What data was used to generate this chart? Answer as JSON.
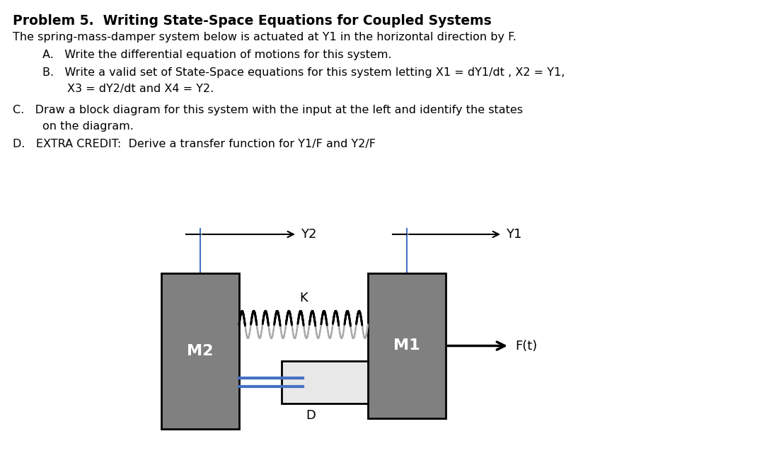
{
  "title": "Problem 5.  Writing State-Space Equations for Coupled Systems",
  "line1": "The spring-mass-damper system below is actuated at Y1 in the horizontal direction by F.",
  "item_A": "A.   Write the differential equation of motions for this system.",
  "item_B1": "B.   Write a valid set of State-Space equations for this system letting X1 = dY1/dt , X2 = Y1,",
  "item_B2": "X3 = dY2/dt and X4 = Y2.",
  "item_C1": "C.   Draw a block diagram for this system with the input at the left and identify the states",
  "item_C2": "on the diagram.",
  "item_D": "D.   EXTRA CREDIT:  Derive a transfer function for Y1/F and Y2/F",
  "bg_color": "#ffffff",
  "gray_mass": "#808080",
  "damper_light": "#e8e8e8",
  "blue_line": "#4472c4"
}
